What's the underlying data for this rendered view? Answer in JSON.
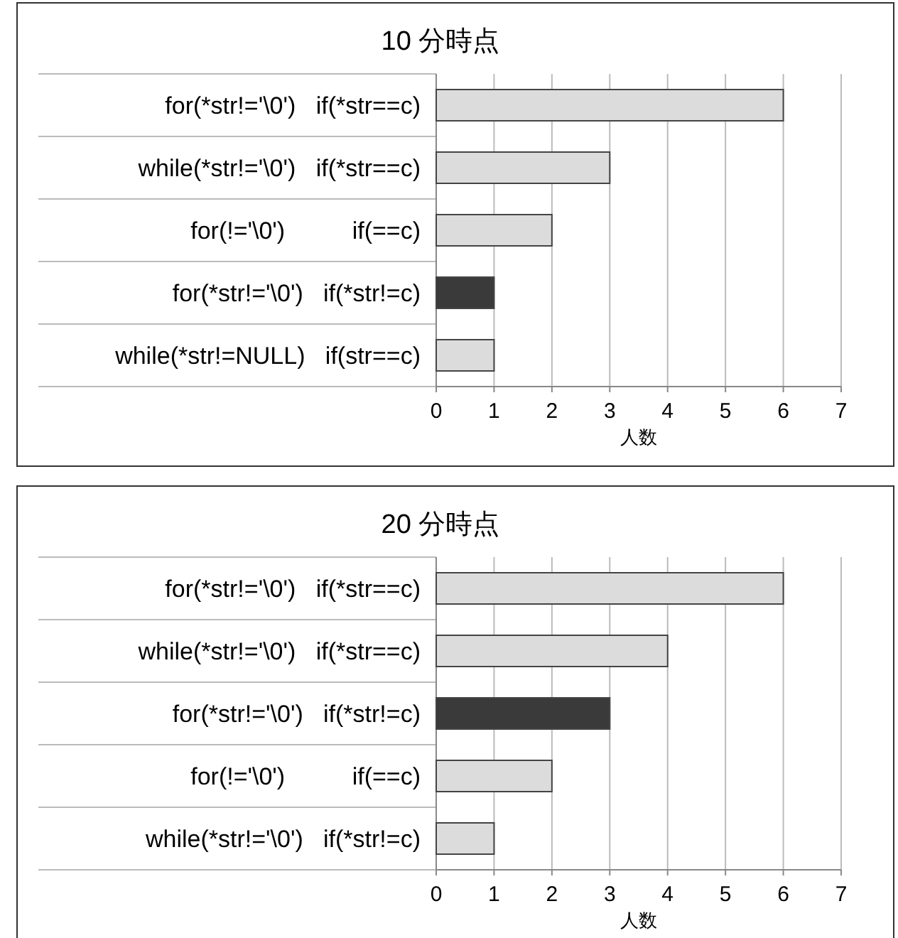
{
  "chart_data": [
    {
      "type": "bar",
      "orientation": "horizontal",
      "title": "10 分時点",
      "xlabel": "人数",
      "categories": [
        "for(*str!='\\0')   if(*str==c)",
        "while(*str!='\\0')   if(*str==c)",
        "for(!='\\0')          if(==c)",
        "for(*str!='\\0')   if(*str!=c)",
        "while(*str!=NULL)   if(str==c)"
      ],
      "values": [
        6,
        3,
        2,
        1,
        1
      ],
      "colors": [
        "#dcdcdc",
        "#dcdcdc",
        "#dcdcdc",
        "#3a3a3a",
        "#dcdcdc"
      ],
      "xlim": [
        0,
        7
      ],
      "xticks": [
        0,
        1,
        2,
        3,
        4,
        5,
        6,
        7
      ],
      "grid": "x"
    },
    {
      "type": "bar",
      "orientation": "horizontal",
      "title": "20 分時点",
      "xlabel": "人数",
      "categories": [
        "for(*str!='\\0')   if(*str==c)",
        "while(*str!='\\0')   if(*str==c)",
        "for(*str!='\\0')   if(*str!=c)",
        "for(!='\\0')          if(==c)",
        "while(*str!='\\0')   if(*str!=c)"
      ],
      "values": [
        6,
        4,
        3,
        2,
        1
      ],
      "colors": [
        "#dcdcdc",
        "#dcdcdc",
        "#3a3a3a",
        "#dcdcdc",
        "#dcdcdc"
      ],
      "xlim": [
        0,
        7
      ],
      "xticks": [
        0,
        1,
        2,
        3,
        4,
        5,
        6,
        7
      ],
      "grid": "x"
    }
  ]
}
